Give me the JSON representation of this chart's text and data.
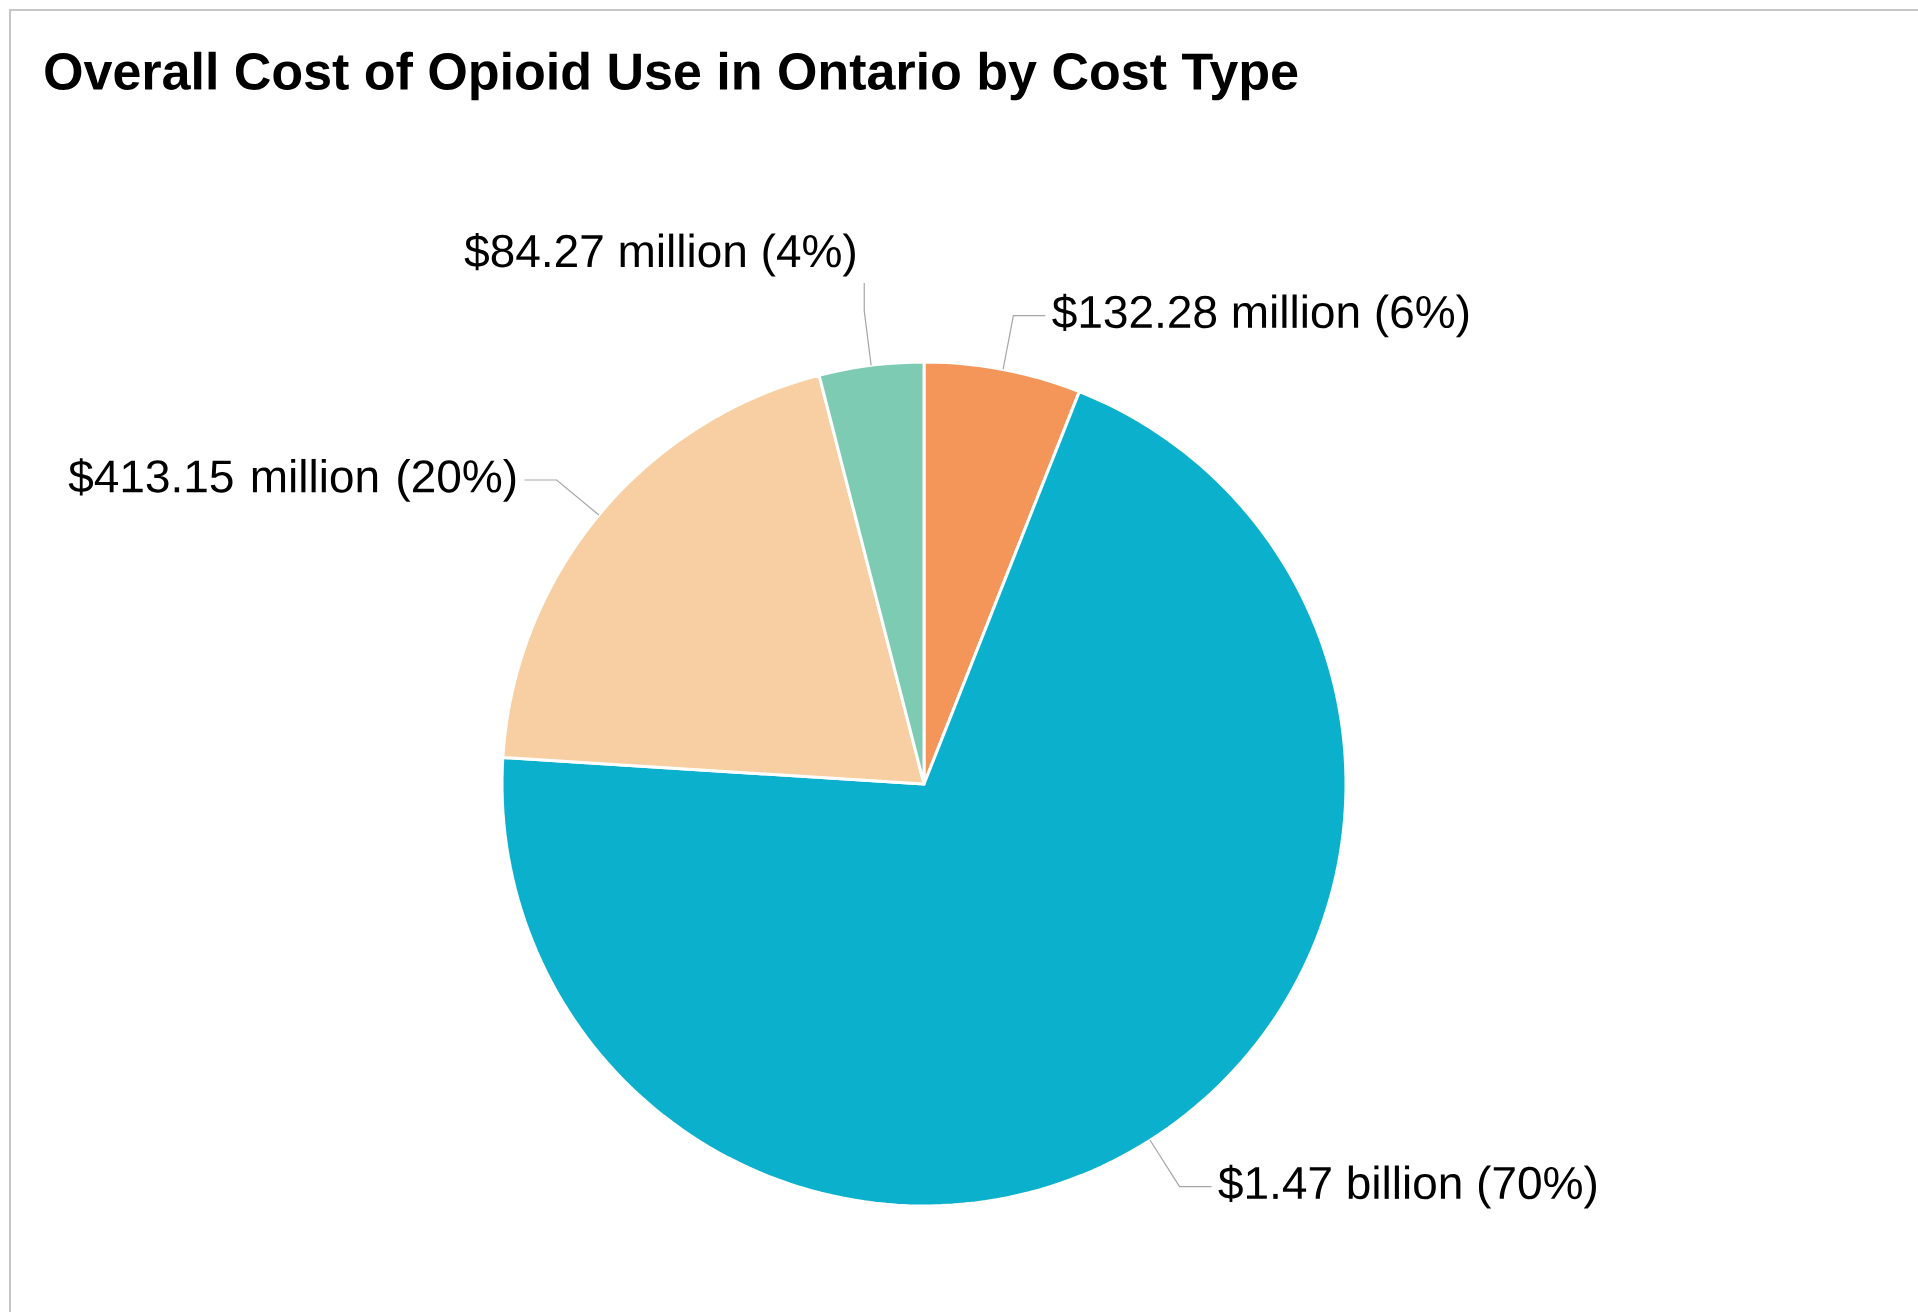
{
  "chart_data": {
    "type": "pie",
    "title": "Overall Cost of Opioid Use in Ontario by Cost Type",
    "categories": [
      null,
      null,
      null,
      null
    ],
    "values": [
      6,
      70,
      20,
      4
    ],
    "colors": [
      "#f4955a",
      "#0bb0cc",
      "#f8cfa2",
      "#7ecbb3"
    ],
    "value_labels": [
      "$132.28 million (6%)",
      "$1.47 billion (70%)",
      "$413.15 million (20%)",
      "$84.27 million (4%)"
    ]
  }
}
